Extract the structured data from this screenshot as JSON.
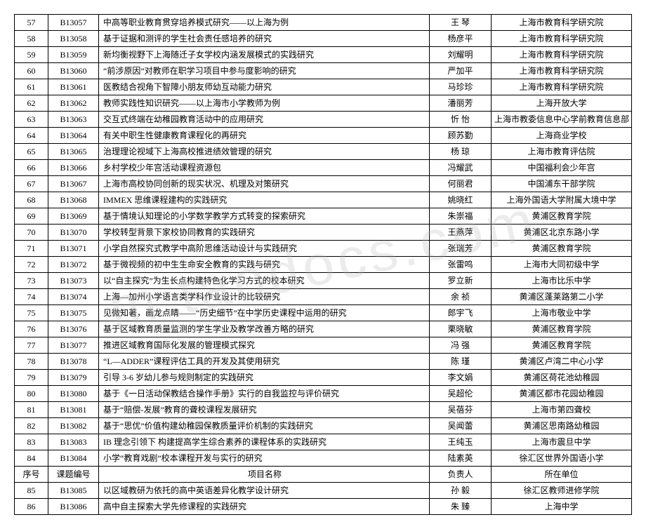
{
  "watermark_text": "m.taodocs.com",
  "header": {
    "idx": "序号",
    "code": "课题编号",
    "title": "项目名称",
    "owner": "负责人",
    "unit": "所在单位"
  },
  "rows": [
    {
      "idx": "57",
      "code": "B13057",
      "title": "中高等职业教育贯穿培养模式研究——以上海为例",
      "owner": "王  琴",
      "unit": "上海市教育科学研究院"
    },
    {
      "idx": "58",
      "code": "B13058",
      "title": "基于证据和测评的学生社会责任感培养的研究",
      "owner": "杨彦平",
      "unit": "上海市教育科学研究院"
    },
    {
      "idx": "59",
      "code": "B13059",
      "title": "新均衡视野下上海随迁子女学校内涵发展模式的实践研究",
      "owner": "刘耀明",
      "unit": "上海市教育科学研究院"
    },
    {
      "idx": "60",
      "code": "B13060",
      "title": "“前涉原因”对教师在职学习项目中参与度影响的研究",
      "owner": "严加平",
      "unit": "上海市教育科学研究院"
    },
    {
      "idx": "61",
      "code": "B13061",
      "title": "医教结合视角下智障小朋友师幼互动能力研究",
      "owner": "马珍珍",
      "unit": "上海市教育科学研究院"
    },
    {
      "idx": "62",
      "code": "B13062",
      "title": "教师实践性知识研究——以上海市小学教师为例",
      "owner": "潘丽芳",
      "unit": "上海开放大学"
    },
    {
      "idx": "63",
      "code": "B13063",
      "title": "交互式终端在幼稚园教育活动中的应用研究",
      "owner": "忻  怡",
      "unit": "上海市教委信息中心学前教育信息部"
    },
    {
      "idx": "64",
      "code": "B13064",
      "title": "有关中职生性健康教育课程化的再研究",
      "owner": "顾苏勤",
      "unit": "上海商业学校"
    },
    {
      "idx": "65",
      "code": "B13065",
      "title": "治理理论视域下上海高校推进绩效管理的研究",
      "owner": "杨  琼",
      "unit": "上海市教育评估院"
    },
    {
      "idx": "66",
      "code": "B13066",
      "title": "乡村学校少年宫活动课程资源包",
      "owner": "冯耀武",
      "unit": "中国福利会少年宫"
    },
    {
      "idx": "67",
      "code": "B13067",
      "title": "上海市高校协同创新的现实状况、机理及对策研究",
      "owner": "何丽君",
      "unit": "中国浦东干部学院"
    },
    {
      "idx": "68",
      "code": "B13068",
      "title": "IMMEX 思维课程建构的实践研究",
      "owner": "姚晓红",
      "unit": "上海外国语大学附属大境中学"
    },
    {
      "idx": "69",
      "code": "B13069",
      "title": "基于情境认知理论的小学数学教学方式转变的探索研究",
      "owner": "朱崇福",
      "unit": "黄浦区教育学院"
    },
    {
      "idx": "70",
      "code": "B13070",
      "title": "学校转型背景下家校协同教育的实践研究",
      "owner": "王燕萍",
      "unit": "黄浦区北京东路小学"
    },
    {
      "idx": "71",
      "code": "B13071",
      "title": "小学自然探究式教学中高阶思维活动设计与实践研究",
      "owner": "张瑞芳",
      "unit": "黄浦区教育学院"
    },
    {
      "idx": "72",
      "code": "B13072",
      "title": "基于微视频的初中生生命安全教育的实践与研究",
      "owner": "张雷鸣",
      "unit": "上海市大同初级中学"
    },
    {
      "idx": "73",
      "code": "B13073",
      "title": "以“自主探究”为生长点构建特色化学习方式的校本研究",
      "owner": "罗立新",
      "unit": "上海市比乐中学"
    },
    {
      "idx": "74",
      "code": "B13074",
      "title": "上海—加州小学语言类学科作业设计的比较研究",
      "owner": "余  祯",
      "unit": "黄浦区蓬莱路第二小学"
    },
    {
      "idx": "75",
      "code": "B13075",
      "title": "见微知著，画龙点睛——“历史细节”在中学历史课程中运用的研究",
      "owner": "郎宇飞",
      "unit": "上海市敬业中学"
    },
    {
      "idx": "76",
      "code": "B13076",
      "title": "基于区域教育质量监测的学生学业及教学改善方略的研究",
      "owner": "栗晓敏",
      "unit": "黄浦区教育学院"
    },
    {
      "idx": "77",
      "code": "B13077",
      "title": "推进区域教育国际化发展的管理模式探究",
      "owner": "冯  强",
      "unit": "黄浦区教育学院"
    },
    {
      "idx": "78",
      "code": "B13078",
      "title": "“L—ADDER”课程评估工具的开发及其使用研究",
      "owner": "陈  瑾",
      "unit": "黄浦区卢湾二中心小学"
    },
    {
      "idx": "79",
      "code": "B13079",
      "title": "引导 3-6 岁幼儿参与规则制定的实践研究",
      "owner": "李文娟",
      "unit": "黄浦区荷花池幼稚园"
    },
    {
      "idx": "80",
      "code": "B13080",
      "title": "基于《一日活动保教结合操作手册》实行的自我监控与评价研究",
      "owner": "吴超伦",
      "unit": "黄浦区都市花园幼稚园"
    },
    {
      "idx": "81",
      "code": "B13081",
      "title": "基于“赔偿-发展”教育的聋校课程发展研究",
      "owner": "吴蓓芬",
      "unit": "上海市第四聋校"
    },
    {
      "idx": "82",
      "code": "B13082",
      "title": "基于“思优”价值构建幼稚园保教质量评价机制的实践研究",
      "owner": "吴闻蕾",
      "unit": "黄浦区思南路幼稚园"
    },
    {
      "idx": "83",
      "code": "B13083",
      "title": "IB 理念引领下 构建提高学生综合素养的课程体系的实践研究",
      "owner": "王纯玉",
      "unit": "上海市震旦中学"
    },
    {
      "idx": "84",
      "code": "B13084",
      "title": "小学“教育戏剧”校本课程开发与实行的研究",
      "owner": "陆素英",
      "unit": "徐汇区世界外国语小学"
    },
    {
      "__hdr__": true
    },
    {
      "idx": "85",
      "code": "B13085",
      "title": "以区域教研为依托的高中英语差异化教学设计研究",
      "owner": "孙  毅",
      "unit": "徐汇区教师进修学院"
    },
    {
      "idx": "86",
      "code": "B13086",
      "title": "高中自主探索大学先修课程的实践研究",
      "owner": "朱  臻",
      "unit": "上海中学"
    }
  ]
}
